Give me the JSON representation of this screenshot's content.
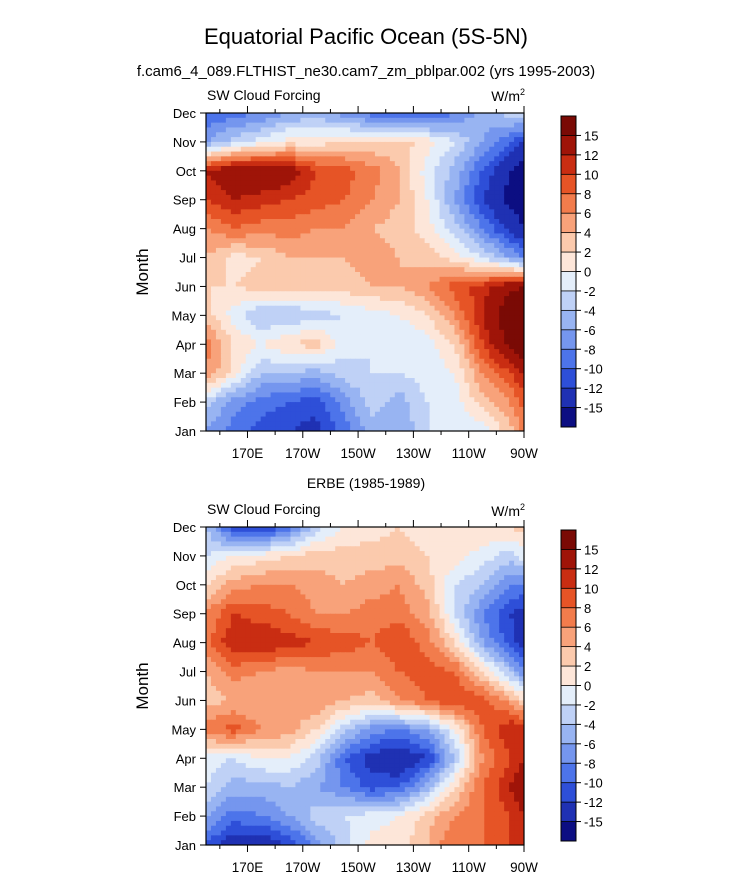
{
  "figure": {
    "title": "Equatorial Pacific Ocean (5S-5N)",
    "subtitle": "f.cam6_4_089.FLTHIST_ne30.cam7_zm_pblpar.002 (yrs 1995-2003)"
  },
  "colorbar": {
    "levels": [
      "-15",
      "-12",
      "-10",
      "-8",
      "-6",
      "-4",
      "-2",
      "0",
      "2",
      "4",
      "6",
      "8",
      "10",
      "12",
      "15"
    ],
    "colors": [
      "#0c0e82",
      "#1f31b3",
      "#2e4fd8",
      "#4d74ea",
      "#7596ee",
      "#98b4f2",
      "#bfd1f6",
      "#e4eefa",
      "#fde6d9",
      "#fbcaad",
      "#f8a27a",
      "#f27c4c",
      "#e65426",
      "#c92d12",
      "#9f1408",
      "#7a0a05"
    ]
  },
  "panels": [
    {
      "id": "model",
      "title": "",
      "left_label": "SW Cloud Forcing",
      "right_label": "W/m",
      "right_label_sup": "2",
      "ylabel": "Month",
      "y_ticks": [
        "Jan",
        "Feb",
        "Mar",
        "Apr",
        "May",
        "Jun",
        "Jul",
        "Aug",
        "Sep",
        "Oct",
        "Nov",
        "Dec"
      ],
      "x_ticks": [
        "170E",
        "170W",
        "150W",
        "130W",
        "110W",
        "90W"
      ]
    },
    {
      "id": "obs",
      "title": "ERBE (1985-1989)",
      "left_label": "SW Cloud Forcing",
      "right_label": "W/m",
      "right_label_sup": "2",
      "ylabel": "Month",
      "y_ticks": [
        "Jan",
        "Feb",
        "Mar",
        "Apr",
        "May",
        "Jun",
        "Jul",
        "Aug",
        "Sep",
        "Oct",
        "Nov",
        "Dec"
      ],
      "x_ticks": [
        "170E",
        "170W",
        "150W",
        "130W",
        "110W",
        "90W"
      ]
    }
  ],
  "chart_data": [
    {
      "type": "heatmap",
      "title": "SW Cloud Forcing",
      "subtitle": "f.cam6_4_089.FLTHIST_ne30.cam7_zm_pblpar.002 (yrs 1995-2003)",
      "units": "W/m2",
      "xlabel": "",
      "ylabel": "Month",
      "x_tick_labels": [
        "170E",
        "170W",
        "150W",
        "130W",
        "110W",
        "90W"
      ],
      "x_ticks_deg_east": [
        170,
        190,
        210,
        230,
        250,
        270
      ],
      "xlim_deg_east": [
        155,
        270
      ],
      "y_categories": [
        "Jan",
        "Feb",
        "Mar",
        "Apr",
        "May",
        "Jun",
        "Jul",
        "Aug",
        "Sep",
        "Oct",
        "Nov",
        "Dec"
      ],
      "contour_levels": [
        -15,
        -12,
        -10,
        -8,
        -6,
        -4,
        -2,
        0,
        2,
        4,
        6,
        8,
        10,
        12,
        15
      ],
      "grid_x_deg_east": [
        155,
        165,
        175,
        185,
        195,
        205,
        215,
        225,
        235,
        245,
        255,
        265,
        270
      ],
      "z": [
        [
          -6,
          -9,
          -11,
          -12,
          -13,
          -9,
          -5,
          -6,
          -2,
          -2,
          -1,
          3,
          7
        ],
        [
          -3,
          -7,
          -9,
          -10,
          -11,
          -7,
          -3,
          -5,
          -2,
          -1,
          3,
          6,
          9
        ],
        [
          6,
          1,
          -4,
          -4,
          -5,
          -3,
          -2,
          -2,
          -1,
          0,
          6,
          10,
          12
        ],
        [
          7,
          2,
          0,
          2,
          3,
          -1,
          -2,
          -2,
          -1,
          2,
          10,
          16,
          18
        ],
        [
          3,
          -1,
          -4,
          -4,
          -3,
          -2,
          -1,
          0,
          2,
          6,
          12,
          18,
          20
        ],
        [
          2,
          2,
          3,
          3,
          3,
          3,
          4,
          4,
          6,
          9,
          11,
          14,
          15
        ],
        [
          4,
          1,
          2,
          4,
          4,
          4,
          5,
          4,
          3,
          1,
          -2,
          -6,
          -8
        ],
        [
          6,
          8,
          7,
          7,
          6,
          6,
          4,
          3,
          1,
          -3,
          -8,
          -13,
          -15
        ],
        [
          10,
          12,
          11,
          10,
          9,
          8,
          6,
          4,
          0,
          -6,
          -12,
          -16,
          -17
        ],
        [
          12,
          15,
          15,
          14,
          10,
          9,
          7,
          4,
          -1,
          -5,
          -10,
          -15,
          -17
        ],
        [
          -6,
          -3,
          -1,
          1,
          1,
          2,
          2,
          3,
          1,
          -2,
          -6,
          -10,
          -12
        ],
        [
          -10,
          -9,
          -8,
          -6,
          -5,
          -7,
          -9,
          -10,
          -11,
          -8,
          -5,
          -3,
          -2
        ]
      ]
    },
    {
      "type": "heatmap",
      "title": "ERBE (1985-1989)",
      "subtitle": "SW Cloud Forcing",
      "units": "W/m2",
      "xlabel": "",
      "ylabel": "Month",
      "x_tick_labels": [
        "170E",
        "170W",
        "150W",
        "130W",
        "110W",
        "90W"
      ],
      "x_ticks_deg_east": [
        170,
        190,
        210,
        230,
        250,
        270
      ],
      "xlim_deg_east": [
        155,
        270
      ],
      "y_categories": [
        "Jan",
        "Feb",
        "Mar",
        "Apr",
        "May",
        "Jun",
        "Jul",
        "Aug",
        "Sep",
        "Oct",
        "Nov",
        "Dec"
      ],
      "contour_levels": [
        -15,
        -12,
        -10,
        -8,
        -6,
        -4,
        -2,
        0,
        2,
        4,
        6,
        8,
        10,
        12,
        15
      ],
      "grid_x_deg_east": [
        155,
        165,
        175,
        185,
        195,
        205,
        215,
        225,
        235,
        245,
        255,
        265,
        270
      ],
      "z": [
        [
          -10,
          -14,
          -14,
          -12,
          -7,
          -3,
          1,
          1,
          4,
          8,
          8,
          10,
          10
        ],
        [
          -6,
          -9,
          -8,
          -6,
          -3,
          -2,
          -1,
          0,
          3,
          6,
          8,
          10,
          12
        ],
        [
          -2,
          -5,
          -5,
          -4,
          -6,
          -8,
          -11,
          -10,
          -5,
          2,
          8,
          12,
          15
        ],
        [
          -1,
          -2,
          0,
          0,
          -3,
          -10,
          -13,
          -15,
          -12,
          -4,
          6,
          10,
          12
        ],
        [
          7,
          9,
          6,
          5,
          2,
          -3,
          -7,
          -8,
          -6,
          0,
          8,
          12,
          11
        ],
        [
          3,
          4,
          4,
          5,
          6,
          4,
          3,
          6,
          8,
          10,
          9,
          5,
          2
        ],
        [
          4,
          7,
          6,
          5,
          6,
          6,
          6,
          8,
          9,
          8,
          2,
          -4,
          -8
        ],
        [
          7,
          12,
          12,
          11,
          10,
          9,
          8,
          10,
          7,
          2,
          -6,
          -11,
          -14
        ],
        [
          6,
          10,
          9,
          8,
          6,
          6,
          7,
          7,
          5,
          -2,
          -8,
          -12,
          -13
        ],
        [
          2,
          5,
          6,
          6,
          5,
          4,
          5,
          6,
          3,
          -2,
          -4,
          -8,
          -8
        ],
        [
          -2,
          0,
          1,
          2,
          3,
          3,
          3,
          3,
          2,
          1,
          -1,
          -3,
          -1
        ],
        [
          -4,
          -12,
          -13,
          -9,
          -3,
          0,
          1,
          2,
          1,
          1,
          2,
          2,
          3
        ]
      ]
    }
  ]
}
